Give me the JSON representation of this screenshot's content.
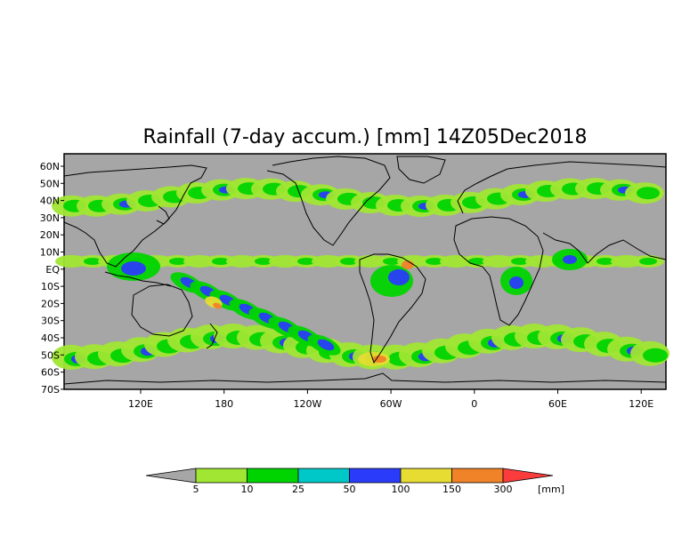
{
  "title": "Rainfall (7-day accum.) [mm] 14Z05Dec2018",
  "map": {
    "lat_labels": [
      "60N",
      "50N",
      "40N",
      "30N",
      "20N",
      "10N",
      "EQ",
      "10S",
      "20S",
      "30S",
      "40S",
      "50S",
      "60S",
      "70S"
    ],
    "lon_labels": [
      "120E",
      "180",
      "120W",
      "60W",
      "0",
      "60E",
      "120E"
    ],
    "background_color": "#a6a6a6",
    "coastline_color": "#000000"
  },
  "colorbar": {
    "unit": "[mm]",
    "ticks": [
      "5",
      "10",
      "25",
      "50",
      "100",
      "150",
      "300"
    ],
    "bins": [
      {
        "color": "#a6a6a6"
      },
      {
        "color": "#a0e632"
      },
      {
        "color": "#00d400"
      },
      {
        "color": "#00c8c8"
      },
      {
        "color": "#2a3cfa"
      },
      {
        "color": "#e6dc32"
      },
      {
        "color": "#f08228"
      },
      {
        "color": "#fa3c3c"
      }
    ]
  }
}
